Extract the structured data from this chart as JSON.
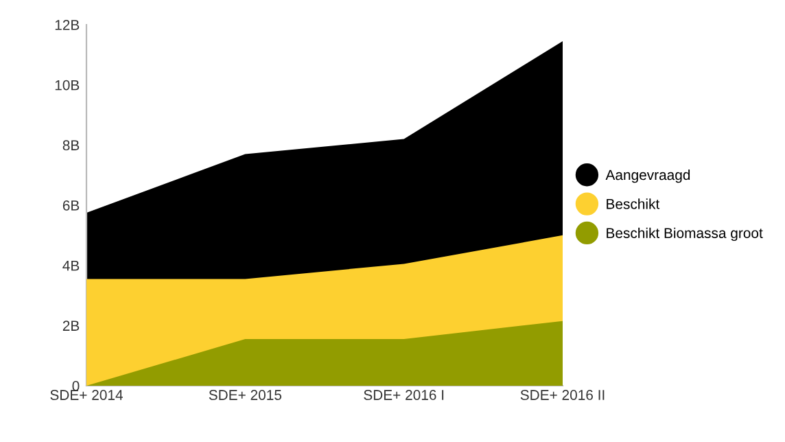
{
  "chart_data": {
    "type": "area",
    "categories": [
      "SDE+ 2014",
      "SDE+ 2015",
      "SDE+ 2016 I",
      "SDE+ 2016 II"
    ],
    "series": [
      {
        "name": "Aangevraagd",
        "color": "#000000",
        "values": [
          5.75,
          7.7,
          8.2,
          11.45
        ]
      },
      {
        "name": "Beschikt",
        "color": "#fdd030",
        "values": [
          3.55,
          3.55,
          4.05,
          5.0
        ]
      },
      {
        "name": "Beschikt Biomassa groot",
        "color": "#929c00",
        "values": [
          0,
          1.55,
          1.55,
          2.15
        ]
      }
    ],
    "ylim": [
      0,
      12
    ],
    "yticks": [
      {
        "value": 0,
        "label": "0"
      },
      {
        "value": 2,
        "label": "2B"
      },
      {
        "value": 4,
        "label": "4B"
      },
      {
        "value": 6,
        "label": "6B"
      },
      {
        "value": 8,
        "label": "8B"
      },
      {
        "value": 10,
        "label": "10B"
      },
      {
        "value": 12,
        "label": "12B"
      }
    ],
    "grid": false,
    "legend": "right"
  }
}
